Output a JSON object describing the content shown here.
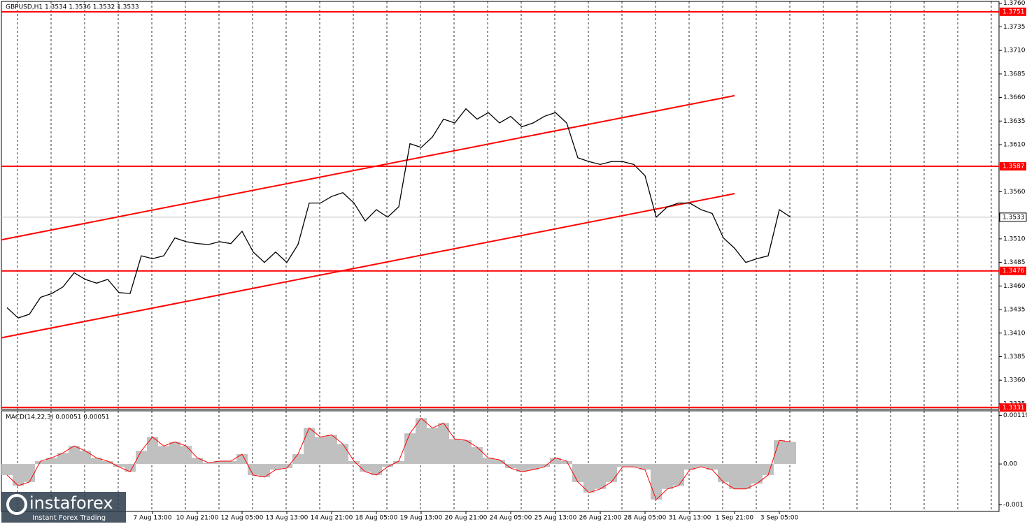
{
  "chart_data": {
    "type": "line",
    "title": "GBPUSD,H1  1.3534 1.3536 1.3532 1.3533",
    "categories": [
      null,
      null,
      null,
      null,
      null,
      null,
      null,
      null,
      null,
      null,
      null,
      null,
      null,
      "7 Aug 13:00",
      null,
      null,
      null,
      "10 Aug 21:00",
      null,
      null,
      null,
      "12 Aug 05:00",
      null,
      null,
      null,
      "13 Aug 13:00",
      null,
      null,
      null,
      "14 Aug 21:00",
      null,
      null,
      null,
      "18 Aug 05:00",
      null,
      null,
      null,
      "19 Aug 13:00",
      null,
      null,
      null,
      "20 Aug 21:00",
      null,
      null,
      null,
      "24 Aug 05:00",
      null,
      null,
      null,
      "25 Aug 13:00",
      null,
      null,
      null,
      "26 Aug 21:00",
      null,
      null,
      null,
      "28 Aug 05:00",
      null,
      null,
      null,
      "31 Aug 13:00",
      null,
      null,
      null,
      "1 Sep 21:00",
      null,
      null,
      null,
      "3 Sep 05:00",
      null
    ],
    "series": [
      {
        "name": "GBPUSD",
        "color": "#000000",
        "values": [
          1.3437,
          1.3426,
          1.343,
          1.3448,
          1.3452,
          1.3459,
          1.3474,
          1.3467,
          1.3463,
          1.3467,
          1.3453,
          1.3452,
          1.3492,
          1.3489,
          1.3492,
          1.3511,
          1.3507,
          1.3505,
          1.3504,
          1.3507,
          1.3505,
          1.3518,
          1.3496,
          1.3485,
          1.3496,
          1.3485,
          1.3504,
          1.3548,
          1.3548,
          1.3555,
          1.3559,
          1.3548,
          1.3529,
          1.3541,
          1.3533,
          1.3544,
          1.3611,
          1.3607,
          1.3618,
          1.3637,
          1.3633,
          1.3648,
          1.3637,
          1.3644,
          1.3633,
          1.364,
          1.3629,
          1.3633,
          1.364,
          1.3644,
          1.3633,
          1.3596,
          1.3592,
          1.3589,
          1.3592,
          1.3592,
          1.3589,
          1.3577,
          1.3533,
          1.3544,
          1.3548,
          1.3548,
          1.3541,
          1.3537,
          1.3511,
          1.35,
          1.3485,
          1.3489,
          1.3492,
          1.3541,
          1.3533
        ]
      }
    ],
    "ylim": [
      1.3329,
      1.3762
    ],
    "yticks": [
      {
        "value": 1.376,
        "label": "1.3760"
      },
      {
        "value": 1.3735,
        "label": "1.3735"
      },
      {
        "value": 1.371,
        "label": "1.3710"
      },
      {
        "value": 1.3685,
        "label": "1.3685"
      },
      {
        "value": 1.366,
        "label": "1.3660"
      },
      {
        "value": 1.3635,
        "label": "1.3635"
      },
      {
        "value": 1.361,
        "label": "1.3610"
      },
      {
        "value": 1.356,
        "label": "1.3560"
      },
      {
        "value": 1.351,
        "label": "1.3510"
      },
      {
        "value": 1.3485,
        "label": "1.3485"
      },
      {
        "value": 1.346,
        "label": "1.3460"
      },
      {
        "value": 1.3435,
        "label": "1.3435"
      },
      {
        "value": 1.341,
        "label": "1.3410"
      },
      {
        "value": 1.3385,
        "label": "1.3385"
      },
      {
        "value": 1.336,
        "label": "1.3360"
      },
      {
        "value": 1.3335,
        "label": "1.3335"
      }
    ],
    "levels_color": "#ff0000",
    "levels": [
      {
        "value": 1.3751,
        "label": "1.3751"
      },
      {
        "value": 1.3587,
        "label": "1.3587"
      },
      {
        "value": 1.3476,
        "label": "1.3476"
      },
      {
        "value": 1.3331,
        "label": "1.3331"
      }
    ],
    "last_price": {
      "value": 1.3533,
      "label": "1.3533"
    },
    "trendlines": [
      {
        "color": "#ff0000",
        "values": [
          1.3509,
          1.3662
        ]
      },
      {
        "color": "#ff0000",
        "values": [
          1.3405,
          1.3558
        ]
      }
    ],
    "indicator": {
      "type": "bar",
      "title": "MACD(14,22,3) 0.00051 0.00051",
      "color": "#c0c0c0",
      "line_color": "#ff0000",
      "values": [
        -0.00027,
        -0.00053,
        -0.00044,
        7e-05,
        0.00015,
        0.00027,
        0.00044,
        0.00032,
        0.00015,
        7e-05,
        -7e-05,
        -0.00019,
        0.00032,
        0.00066,
        0.00044,
        0.00054,
        0.00044,
        0.00015,
        3e-05,
        7e-05,
        7e-05,
        0.00024,
        -0.00027,
        -0.00032,
        -0.00014,
        -0.0001,
        0.00024,
        0.00088,
        0.00066,
        0.00071,
        0.00049,
        7e-05,
        -0.00019,
        -0.00027,
        -7e-05,
        7e-05,
        0.00075,
        0.00112,
        0.00088,
        0.001,
        0.00061,
        0.00058,
        0.00041,
        0.00015,
        0.0001,
        -0.0001,
        -0.00019,
        -0.00014,
        -7e-05,
        0.00015,
        7e-05,
        -0.00044,
        -0.0007,
        -0.00061,
        -0.00044,
        -7e-05,
        -7e-05,
        -0.00014,
        -0.00087,
        -0.00061,
        -0.00053,
        -0.00014,
        -7e-05,
        -0.00014,
        -0.00044,
        -0.00061,
        -0.00061,
        -0.00048,
        -0.00027,
        0.00058,
        0.00054
      ],
      "ylim": [
        -0.00116,
        0.0013
      ],
      "yticks": [
        {
          "value": 0.00119,
          "label": "0.00119"
        },
        {
          "value": 0,
          "label": "0.00"
        },
        {
          "value": -0.001,
          "label": "-0.001"
        }
      ]
    },
    "watermark": {
      "brand": "instaforex",
      "tagline": "Instant Forex Trading"
    }
  }
}
